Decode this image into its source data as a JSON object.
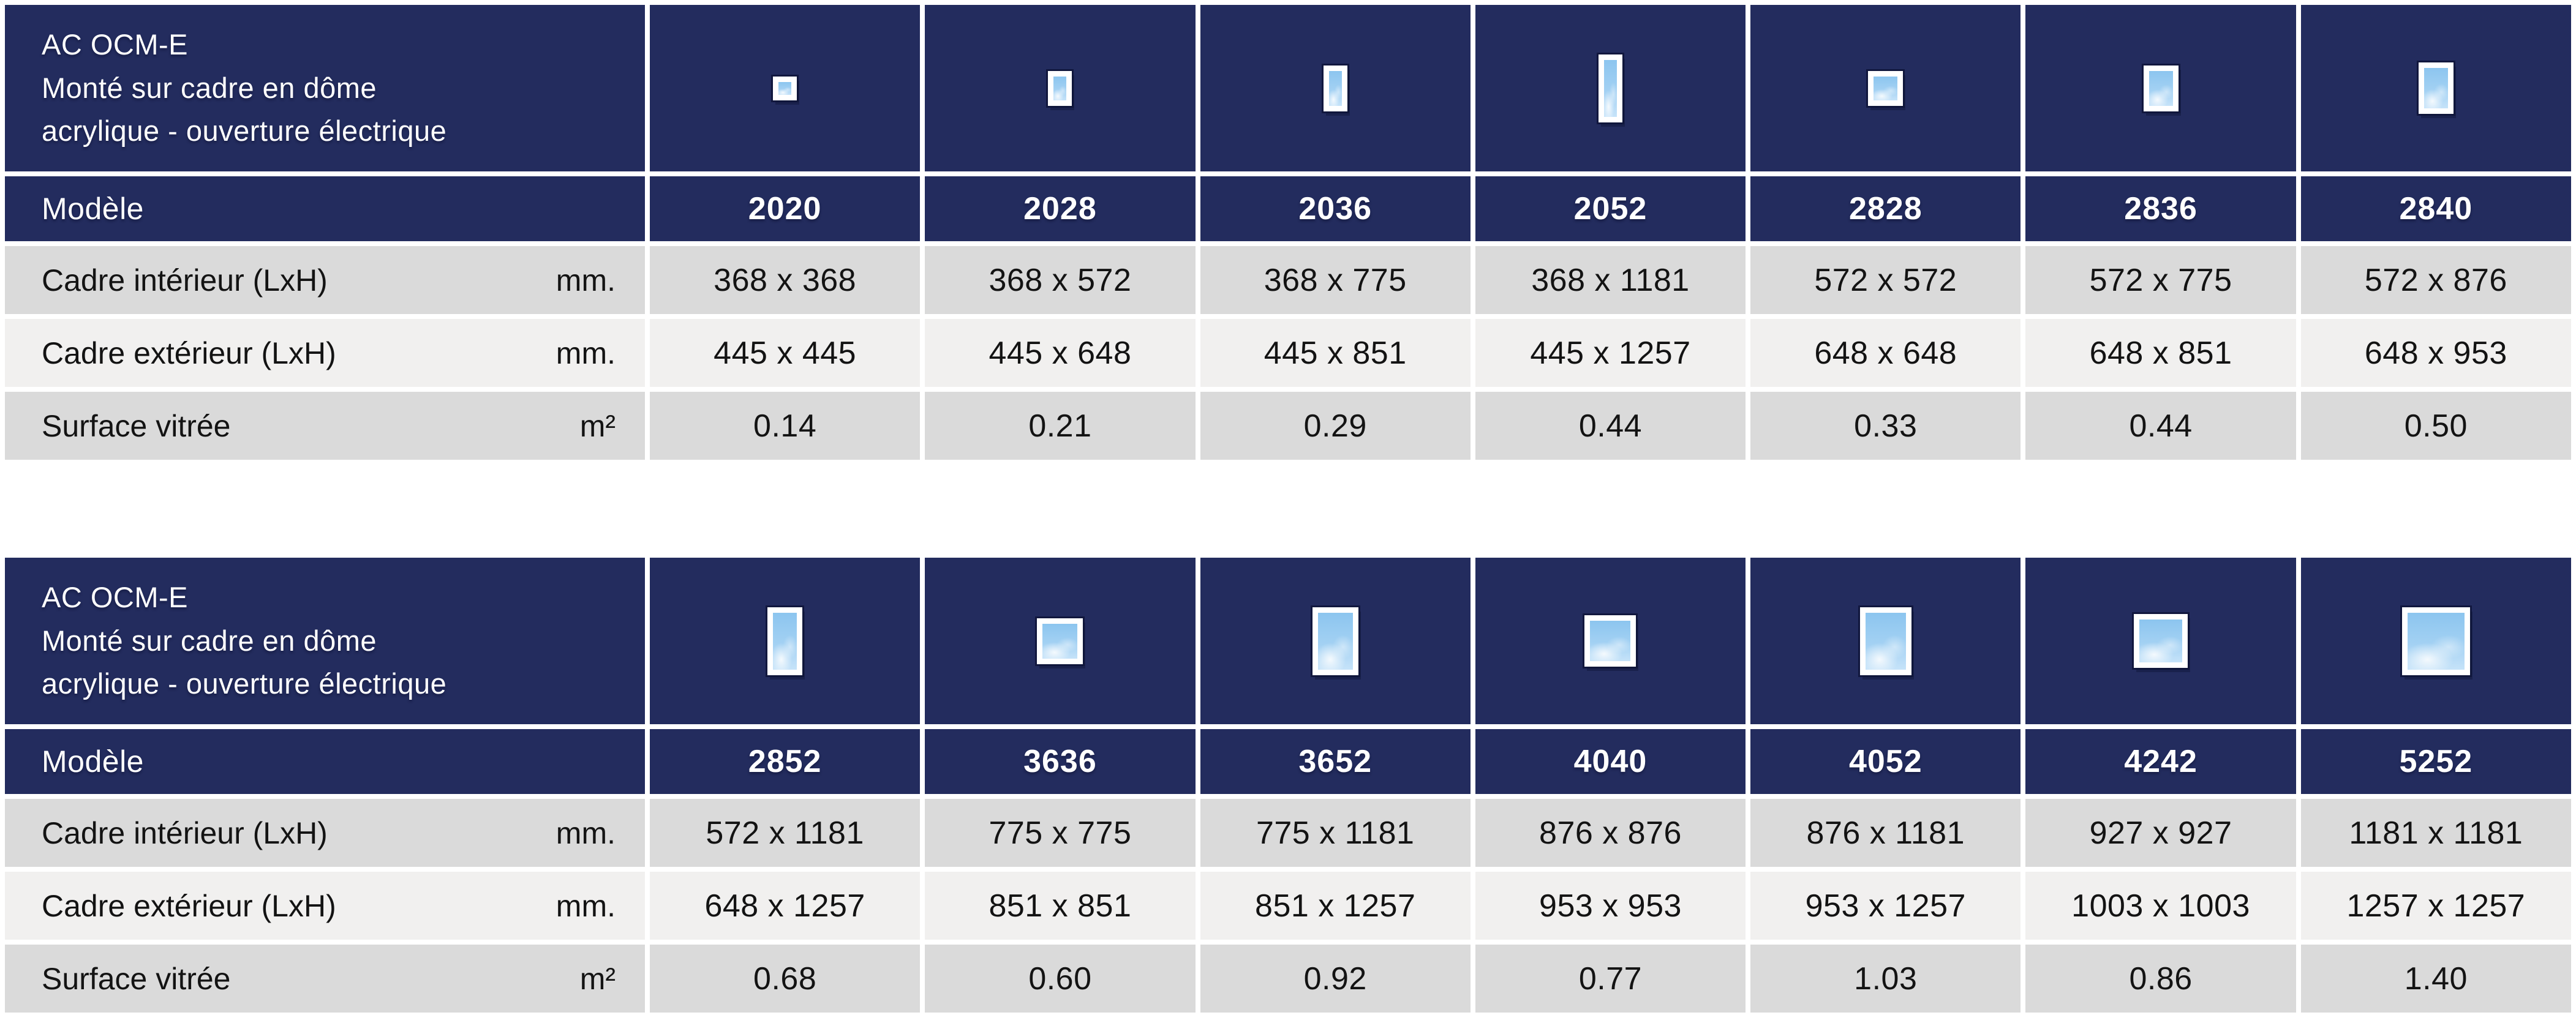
{
  "colors": {
    "navy": "#232c5e",
    "row_gray": "#dadada",
    "row_light": "#f1f0ef",
    "text_dark": "#131313",
    "glass_blue": "#8cc5ef",
    "white": "#ffffff"
  },
  "tables": [
    {
      "title_lines": [
        "AC OCM-E",
        "Monté sur cadre en dôme",
        "acrylique - ouverture électrique"
      ],
      "model_row_label": "Modèle",
      "spec_rows": [
        {
          "label": "Cadre intérieur (LxH)",
          "unit": "mm."
        },
        {
          "label": "Cadre extérieur (LxH)",
          "unit": "mm."
        },
        {
          "label": "Surface vitrée",
          "unit": "m²"
        }
      ],
      "columns": [
        {
          "model": "2020",
          "inner": "368 x 368",
          "outer": "445 x 445",
          "glazed": "0.14"
        },
        {
          "model": "2028",
          "inner": "368 x 572",
          "outer": "445 x 648",
          "glazed": "0.21"
        },
        {
          "model": "2036",
          "inner": "368 x 775",
          "outer": "445 x 851",
          "glazed": "0.29"
        },
        {
          "model": "2052",
          "inner": "368 x 1181",
          "outer": "445 x 1257",
          "glazed": "0.44"
        },
        {
          "model": "2828",
          "inner": "572 x 572",
          "outer": "648 x 648",
          "glazed": "0.33"
        },
        {
          "model": "2836",
          "inner": "572 x 775",
          "outer": "648 x 851",
          "glazed": "0.44"
        },
        {
          "model": "2840",
          "inner": "572 x 876",
          "outer": "648 x 953",
          "glazed": "0.50"
        }
      ]
    },
    {
      "title_lines": [
        "AC OCM-E",
        "Monté sur cadre en dôme",
        "acrylique - ouverture électrique"
      ],
      "model_row_label": "Modèle",
      "spec_rows": [
        {
          "label": "Cadre intérieur (LxH)",
          "unit": "mm."
        },
        {
          "label": "Cadre extérieur (LxH)",
          "unit": "mm."
        },
        {
          "label": "Surface vitrée",
          "unit": "m²"
        }
      ],
      "columns": [
        {
          "model": "2852",
          "inner": "572 x 1181",
          "outer": "648 x 1257",
          "glazed": "0.68"
        },
        {
          "model": "3636",
          "inner": "775 x 775",
          "outer": "851 x 851",
          "glazed": "0.60"
        },
        {
          "model": "3652",
          "inner": "775 x 1181",
          "outer": "851 x 1257",
          "glazed": "0.92"
        },
        {
          "model": "4040",
          "inner": "876 x 876",
          "outer": "953 x 953",
          "glazed": "0.77"
        },
        {
          "model": "4052",
          "inner": "876 x 1181",
          "outer": "953 x 1257",
          "glazed": "1.03"
        },
        {
          "model": "4242",
          "inner": "927 x 927",
          "outer": "1003 x 1003",
          "glazed": "0.86"
        },
        {
          "model": "5252",
          "inner": "1181 x 1181",
          "outer": "1257 x 1257",
          "glazed": "1.40"
        }
      ]
    }
  ]
}
